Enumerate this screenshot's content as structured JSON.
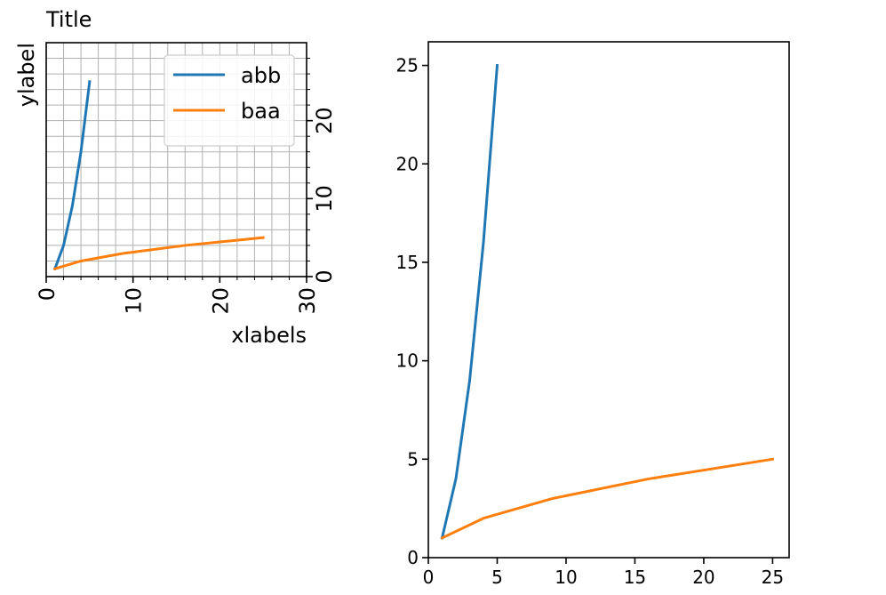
{
  "chart_data": [
    {
      "type": "line",
      "title": "Title",
      "xlabel": "xlabels",
      "ylabel": "ylabel",
      "xlim": [
        0,
        30
      ],
      "ylim": [
        0,
        30
      ],
      "xticks": [
        0,
        10,
        20,
        30
      ],
      "yticks": [
        0,
        10,
        20
      ],
      "xtick_labels": [
        "0",
        "10",
        "20",
        "30"
      ],
      "ytick_labels": [
        "0",
        "10",
        "20"
      ],
      "yaxis_position": "right",
      "grid": true,
      "legend": "top-right",
      "series": [
        {
          "name": "abb",
          "color": "#1f77b4",
          "x": [
            1,
            2,
            3,
            4,
            5
          ],
          "y": [
            1,
            4,
            9,
            16,
            25
          ]
        },
        {
          "name": "baa",
          "color": "#ff7f0e",
          "x": [
            1,
            4,
            9,
            16,
            25
          ],
          "y": [
            1,
            2,
            3,
            4,
            5
          ]
        }
      ]
    },
    {
      "type": "line",
      "title": "",
      "xlabel": "",
      "ylabel": "",
      "xlim": [
        0,
        26.2
      ],
      "ylim": [
        0,
        26.2
      ],
      "xticks": [
        0,
        5,
        10,
        15,
        20,
        25
      ],
      "yticks": [
        0,
        5,
        10,
        15,
        20,
        25
      ],
      "xtick_labels": [
        "0",
        "5",
        "10",
        "15",
        "20",
        "25"
      ],
      "ytick_labels": [
        "0",
        "5",
        "10",
        "15",
        "20",
        "25"
      ],
      "yaxis_position": "left",
      "grid": false,
      "legend": "none",
      "series": [
        {
          "color": "#1f77b4",
          "x": [
            1,
            2,
            3,
            4,
            5
          ],
          "y": [
            1,
            4,
            9,
            16,
            25
          ]
        },
        {
          "color": "#ff7f0e",
          "x": [
            1,
            4,
            9,
            16,
            25
          ],
          "y": [
            1,
            2,
            3,
            4,
            5
          ]
        }
      ]
    }
  ]
}
